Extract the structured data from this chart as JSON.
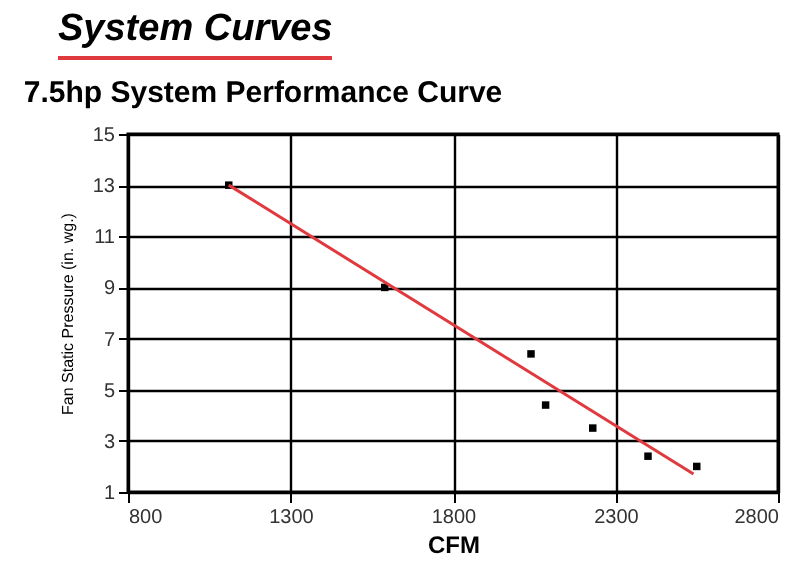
{
  "chart_data": {
    "type": "scatter",
    "title": "System Curves",
    "subtitle": "7.5hp System Performance Curve",
    "xlabel": "CFM",
    "ylabel": "Fan Static Pressure (in. wg.)",
    "series": [
      {
        "marker": "square",
        "color": "#000000",
        "x": [
          1110,
          1590,
          2040,
          2085,
          2230,
          2400,
          2550
        ],
        "values": [
          13,
          9,
          6.4,
          4.4,
          3.5,
          2.4,
          2.0
        ]
      },
      {
        "type": "line",
        "color": "#e0393e",
        "x": [
          1110,
          2540
        ],
        "values": [
          13,
          1.7
        ]
      }
    ],
    "xlim": [
      800,
      2800
    ],
    "xticks": [
      800,
      1300,
      1800,
      2300,
      2800
    ],
    "ylim": [
      1,
      15
    ],
    "yticks": [
      1,
      3,
      5,
      7,
      9,
      11,
      13,
      15
    ],
    "grid": true
  }
}
